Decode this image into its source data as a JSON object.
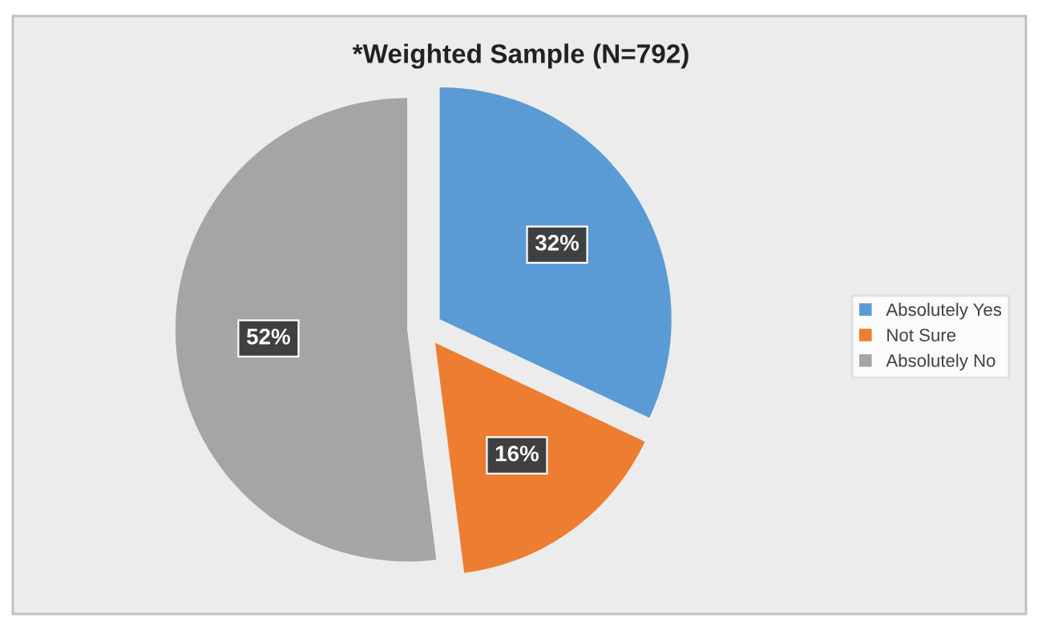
{
  "chart_data": {
    "type": "pie",
    "title": "*Weighted Sample (N=792)",
    "categories": [
      "Absolutely Yes",
      "Not Sure",
      "Absolutely No"
    ],
    "values": [
      32,
      16,
      52
    ],
    "colors": [
      "#5b9bd5",
      "#ed7d31",
      "#a5a5a5"
    ],
    "value_labels": [
      "32%",
      "16%",
      "52%"
    ],
    "legend": "right"
  }
}
